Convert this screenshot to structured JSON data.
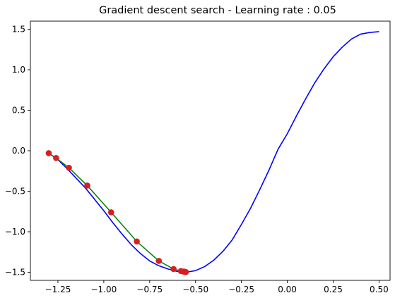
{
  "chart_data": {
    "type": "line",
    "title": "Gradient descent search - Learning rate : 0.05",
    "xlabel": "",
    "ylabel": "",
    "xlim": [
      -1.4,
      0.56
    ],
    "ylim": [
      -1.6,
      1.6
    ],
    "grid": false,
    "x_ticks": [
      -1.25,
      -1.0,
      -0.75,
      -0.5,
      -0.25,
      0.0,
      0.25,
      0.5
    ],
    "x_tick_labels": [
      "−1.25",
      "−1.00",
      "−0.75",
      "−0.50",
      "−0.25",
      "0.00",
      "0.25",
      "0.50"
    ],
    "y_ticks": [
      -1.5,
      -1.0,
      -0.5,
      0.0,
      0.5,
      1.0,
      1.5
    ],
    "y_tick_labels": [
      "−1.5",
      "−1.0",
      "−0.5",
      "0.0",
      "0.5",
      "1.0",
      "1.5"
    ],
    "series": [
      {
        "kind": "line",
        "color": "#0000ff",
        "x": [
          -1.3,
          -1.25,
          -1.2,
          -1.15,
          -1.1,
          -1.05,
          -1.0,
          -0.95,
          -0.9,
          -0.85,
          -0.8,
          -0.75,
          -0.7,
          -0.65,
          -0.6,
          -0.55,
          -0.5,
          -0.45,
          -0.4,
          -0.35,
          -0.3,
          -0.25,
          -0.2,
          -0.15,
          -0.1,
          -0.05,
          0.0,
          0.05,
          0.1,
          0.15,
          0.2,
          0.25,
          0.3,
          0.35,
          0.4,
          0.45,
          0.5
        ],
        "y": [
          -0.03,
          -0.11,
          -0.22,
          -0.34,
          -0.46,
          -0.6,
          -0.74,
          -0.89,
          -1.03,
          -1.16,
          -1.27,
          -1.36,
          -1.42,
          -1.46,
          -1.49,
          -1.5,
          -1.48,
          -1.43,
          -1.35,
          -1.24,
          -1.1,
          -0.91,
          -0.71,
          -0.48,
          -0.24,
          0.02,
          0.21,
          0.43,
          0.64,
          0.84,
          1.01,
          1.16,
          1.28,
          1.38,
          1.44,
          1.46,
          1.47
        ]
      },
      {
        "kind": "path",
        "color": "#008000",
        "x": [
          -1.3,
          -1.26,
          -1.19,
          -1.09,
          -0.96,
          -0.82,
          -0.7,
          -0.62,
          -0.58,
          -0.565,
          -0.558,
          -0.555,
          -0.553
        ],
        "y": [
          -0.03,
          -0.09,
          -0.21,
          -0.43,
          -0.76,
          -1.12,
          -1.36,
          -1.46,
          -1.485,
          -1.492,
          -1.495,
          -1.496,
          -1.497
        ]
      },
      {
        "kind": "scatter",
        "color": "#d62020",
        "x": [
          -1.3,
          -1.26,
          -1.19,
          -1.09,
          -0.96,
          -0.82,
          -0.7,
          -0.62,
          -0.58,
          -0.565,
          -0.558,
          -0.555,
          -0.553
        ],
        "y": [
          -0.03,
          -0.09,
          -0.21,
          -0.43,
          -0.76,
          -1.12,
          -1.36,
          -1.46,
          -1.485,
          -1.492,
          -1.495,
          -1.496,
          -1.497
        ]
      }
    ]
  }
}
